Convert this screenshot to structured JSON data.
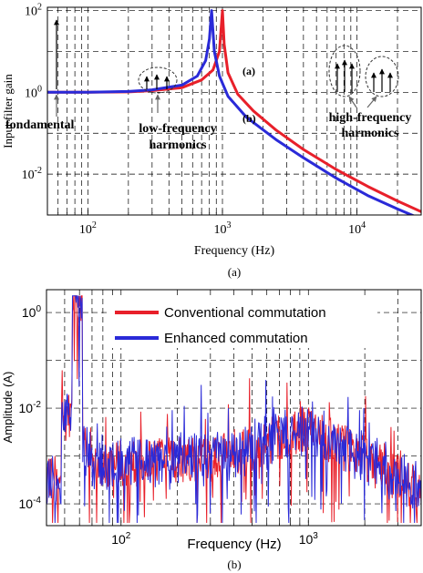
{
  "chart_data": [
    {
      "type": "line",
      "xscale": "log",
      "yscale": "log",
      "xlim": [
        50,
        30000
      ],
      "ylim": [
        0.001,
        120
      ],
      "xlabel": "Frequency (Hz)",
      "ylabel": "Input filter gain",
      "xticks": [
        {
          "value": 100,
          "label": "10",
          "exp": "2"
        },
        {
          "value": 1000,
          "label": "10",
          "exp": "3"
        },
        {
          "value": 10000,
          "label": "10",
          "exp": "4"
        }
      ],
      "yticks": [
        {
          "value": 100,
          "label": "10",
          "exp": "2"
        },
        {
          "value": 1,
          "label": "10",
          "exp": "0"
        },
        {
          "value": 0.01,
          "label": "10",
          "exp": "-2"
        }
      ],
      "grid": true,
      "caption": "(a)",
      "series": [
        {
          "name": "(a)",
          "color": "#e8202a",
          "x": [
            50,
            100,
            200,
            300,
            500,
            700,
            850,
            950,
            1000,
            1030,
            1100,
            1300,
            1700,
            2500,
            4000,
            7000,
            12000,
            20000,
            30000
          ],
          "y": [
            1,
            1,
            1.02,
            1.1,
            1.3,
            2.0,
            3.5,
            10,
            100,
            15,
            3,
            0.9,
            0.35,
            0.12,
            0.04,
            0.013,
            0.005,
            0.0022,
            0.0012
          ]
        },
        {
          "name": "(b)",
          "color": "#2a2ad8",
          "x": [
            50,
            100,
            200,
            300,
            500,
            650,
            750,
            800,
            830,
            870,
            950,
            1100,
            1500,
            2500,
            4000,
            7000,
            12000,
            20000,
            30000
          ],
          "y": [
            1,
            1,
            1.05,
            1.15,
            1.5,
            2.5,
            6,
            20,
            100,
            10,
            2.5,
            0.8,
            0.25,
            0.07,
            0.025,
            0.008,
            0.003,
            0.0014,
            0.0008
          ]
        }
      ],
      "annotations": [
        {
          "text": "fondamental",
          "bold": true
        },
        {
          "text": "low-frequency",
          "bold": true
        },
        {
          "text": "harmonics",
          "bold": true
        },
        {
          "text": "high-frequency",
          "bold": true
        },
        {
          "text": "harmonics",
          "bold": true
        },
        {
          "text": "(a)",
          "bold": true
        },
        {
          "text": "(b)",
          "bold": true
        }
      ]
    },
    {
      "type": "line",
      "xscale": "log",
      "yscale": "log",
      "xlim": [
        40,
        4000
      ],
      "ylim": [
        3.5e-05,
        3
      ],
      "xlabel": "Frequency (Hz)",
      "ylabel": "Amplitude (A)",
      "xticks": [
        {
          "value": 100,
          "label": "10",
          "exp": "2"
        },
        {
          "value": 1000,
          "label": "10",
          "exp": "3"
        }
      ],
      "yticks": [
        {
          "value": 1,
          "label": "10",
          "exp": "0"
        },
        {
          "value": 0.01,
          "label": "10",
          "exp": "-2"
        },
        {
          "value": 0.0001,
          "label": "10",
          "exp": "-4"
        }
      ],
      "grid": true,
      "legend_position": "top",
      "caption": "(b)",
      "series": [
        {
          "name": "Conventional commutation",
          "color": "#e8202a"
        },
        {
          "name": "Enhanced commutation",
          "color": "#2a2ad8"
        }
      ]
    }
  ]
}
